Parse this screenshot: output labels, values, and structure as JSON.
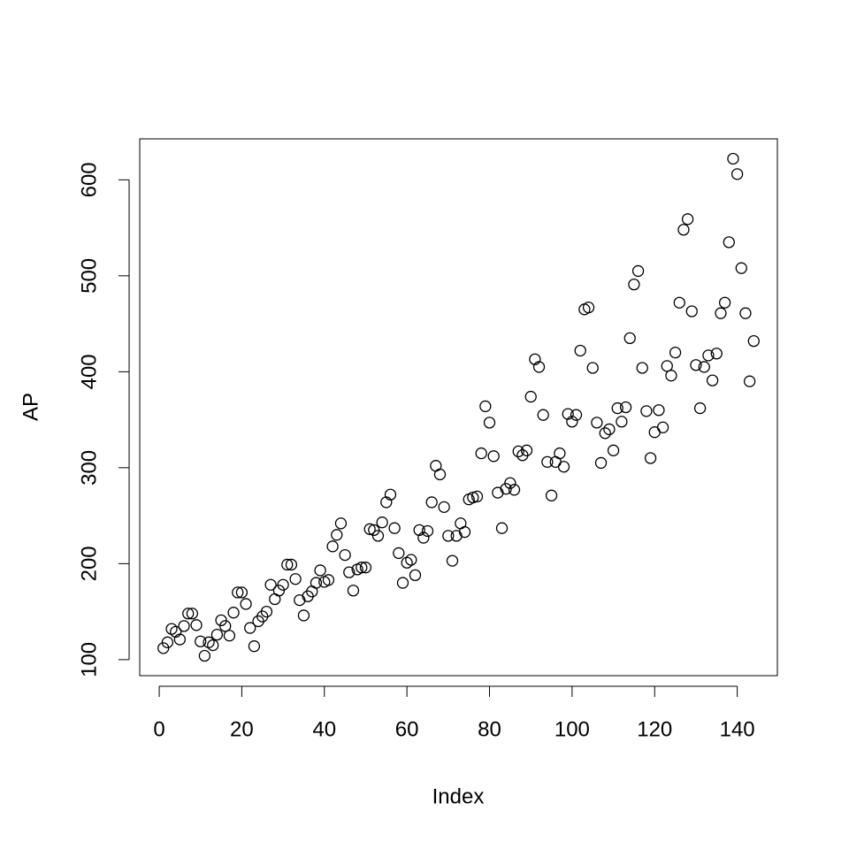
{
  "chart_data": {
    "type": "scatter",
    "x_label": "Index",
    "y_label": "AP",
    "x": [
      1,
      2,
      3,
      4,
      5,
      6,
      7,
      8,
      9,
      10,
      11,
      12,
      13,
      14,
      15,
      16,
      17,
      18,
      19,
      20,
      21,
      22,
      23,
      24,
      25,
      26,
      27,
      28,
      29,
      30,
      31,
      32,
      33,
      34,
      35,
      36,
      37,
      38,
      39,
      40,
      41,
      42,
      43,
      44,
      45,
      46,
      47,
      48,
      49,
      50,
      51,
      52,
      53,
      54,
      55,
      56,
      57,
      58,
      59,
      60,
      61,
      62,
      63,
      64,
      65,
      66,
      67,
      68,
      69,
      70,
      71,
      72,
      73,
      74,
      75,
      76,
      77,
      78,
      79,
      80,
      81,
      82,
      83,
      84,
      85,
      86,
      87,
      88,
      89,
      90,
      91,
      92,
      93,
      94,
      95,
      96,
      97,
      98,
      99,
      100,
      101,
      102,
      103,
      104,
      105,
      106,
      107,
      108,
      109,
      110,
      111,
      112,
      113,
      114,
      115,
      116,
      117,
      118,
      119,
      120,
      121,
      122,
      123,
      124,
      125,
      126,
      127,
      128,
      129,
      130,
      131,
      132,
      133,
      134,
      135,
      136,
      137,
      138,
      139,
      140,
      141,
      142,
      143,
      144
    ],
    "values": [
      112,
      118,
      132,
      129,
      121,
      135,
      148,
      148,
      136,
      119,
      104,
      118,
      115,
      126,
      141,
      135,
      125,
      149,
      170,
      170,
      158,
      133,
      114,
      140,
      145,
      150,
      178,
      163,
      172,
      178,
      199,
      199,
      184,
      162,
      146,
      166,
      171,
      180,
      193,
      181,
      183,
      218,
      230,
      242,
      209,
      191,
      172,
      194,
      196,
      196,
      236,
      235,
      229,
      243,
      264,
      272,
      237,
      211,
      180,
      201,
      204,
      188,
      235,
      227,
      234,
      264,
      302,
      293,
      259,
      229,
      203,
      229,
      242,
      233,
      267,
      269,
      270,
      315,
      364,
      347,
      312,
      274,
      237,
      278,
      284,
      277,
      317,
      313,
      318,
      374,
      413,
      405,
      355,
      306,
      271,
      306,
      315,
      301,
      356,
      348,
      355,
      422,
      465,
      467,
      404,
      347,
      305,
      336,
      340,
      318,
      362,
      348,
      363,
      435,
      491,
      505,
      404,
      359,
      310,
      337,
      360,
      342,
      406,
      396,
      420,
      472,
      548,
      559,
      463,
      407,
      362,
      405,
      417,
      391,
      419,
      461,
      472,
      535,
      622,
      606,
      508,
      461,
      390,
      432
    ],
    "color": "#000000",
    "xlim": [
      -4.72,
      149.72
    ],
    "xticks": [
      0,
      20,
      40,
      60,
      80,
      100,
      120,
      140
    ],
    "ylim": [
      83.28,
      642.72
    ],
    "yticks": [
      100,
      200,
      300,
      400,
      500,
      600
    ]
  }
}
